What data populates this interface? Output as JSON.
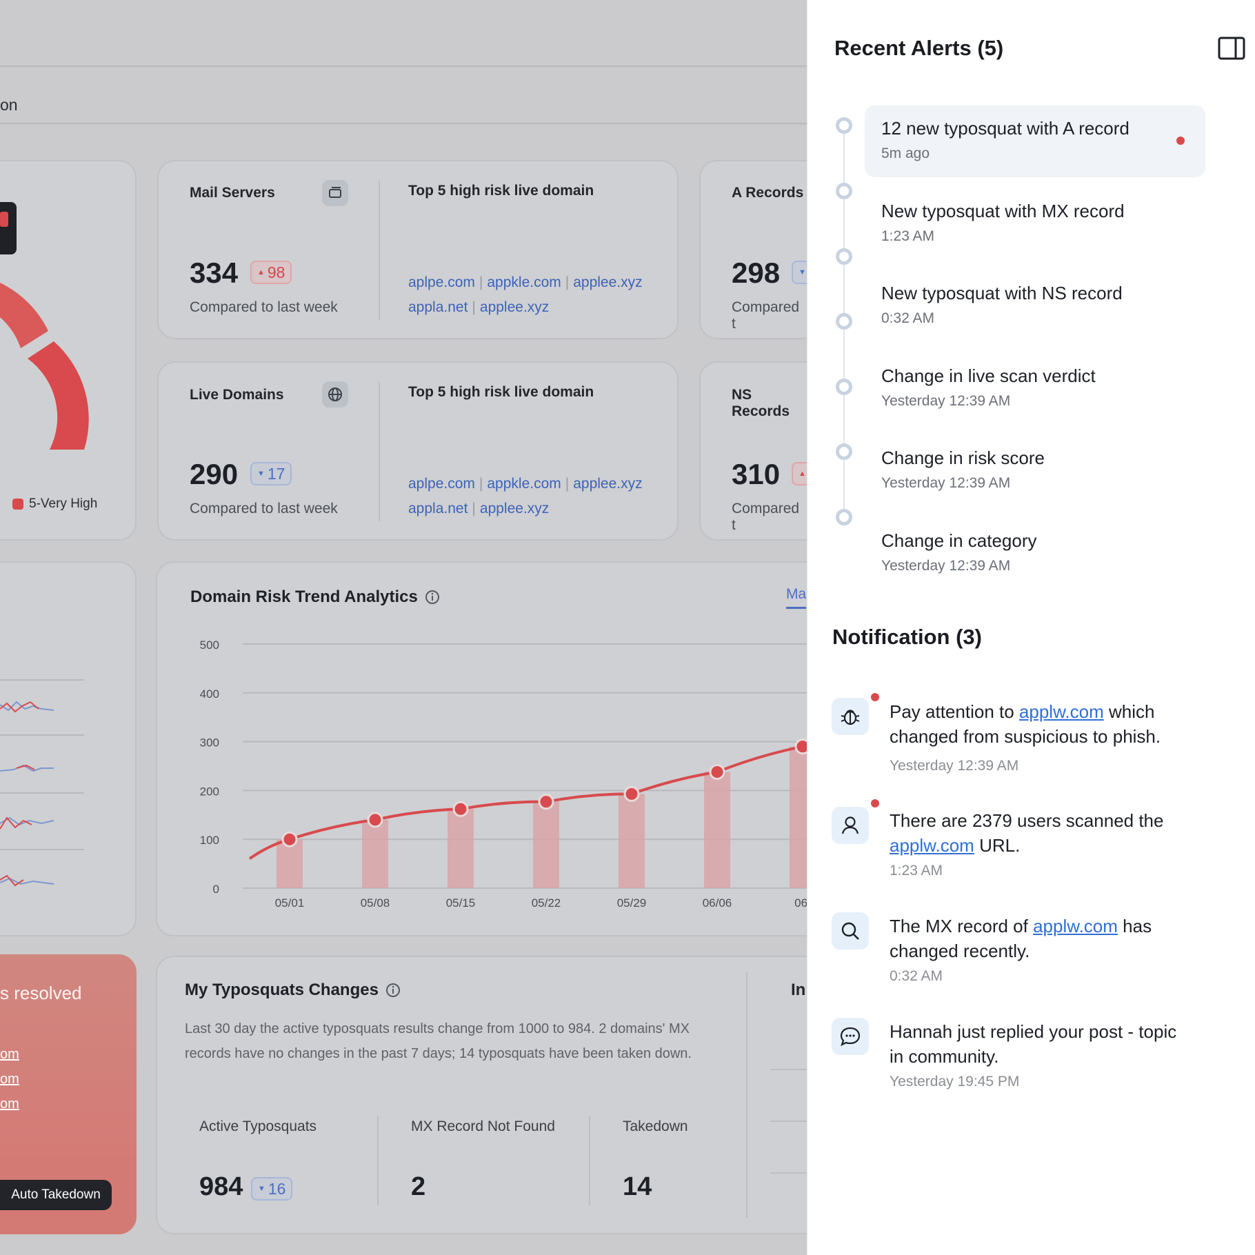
{
  "dashboard": {
    "nav_fragment": "on",
    "legend_very_high": "5-Very High",
    "mail_servers": {
      "title": "Mail Servers",
      "value": "334",
      "change": "98",
      "change_dir": "up",
      "compare": "Compared to last week",
      "top5_title": "Top 5 high risk live domain",
      "domains": [
        "aplpe.com",
        "appkle.com",
        "applee.xyz",
        "appla.net",
        "applee.xyz"
      ]
    },
    "live_domains": {
      "title": "Live Domains",
      "value": "290",
      "change": "17",
      "change_dir": "down",
      "compare": "Compared to last week",
      "top5_title": "Top 5 high risk live domain",
      "domains": [
        "aplpe.com",
        "appkle.com",
        "applee.xyz",
        "appla.net",
        "applee.xyz"
      ]
    },
    "a_records": {
      "title": "A Records",
      "value": "298",
      "compare": "Compared t"
    },
    "ns_records": {
      "title": "NS Records",
      "value": "310",
      "compare": "Compared t"
    },
    "trend": {
      "title": "Domain Risk Trend Analytics",
      "tab_fragment": "Ma"
    },
    "typosquats": {
      "title": "My Typosquats Changes",
      "description": "Last 30 day the active typosquats results change from 1000 to 984. 2 domains' MX records have no changes in the past 7 days; 14 typosquats have been taken down.",
      "active_label": "Active Typosquats",
      "active_value": "984",
      "active_change": "16",
      "mx_label": "MX Record Not Found",
      "mx_value": "2",
      "takedown_label": "Takedown",
      "takedown_value": "14",
      "side_fragment": "In"
    },
    "resolved": {
      "text": "s resolved",
      "links": [
        "om",
        "om",
        "om"
      ],
      "button": "Auto Takedown"
    }
  },
  "chart_data": {
    "type": "line",
    "title": "Domain Risk Trend Analytics",
    "categories": [
      "05/01",
      "05/08",
      "05/15",
      "05/22",
      "05/29",
      "06/06",
      "06/"
    ],
    "series": [
      {
        "values": [
          100,
          140,
          162,
          177,
          193,
          238,
          290
        ]
      }
    ],
    "ylim": [
      0,
      500
    ],
    "yticks": [
      0,
      100,
      200,
      300,
      400,
      500
    ],
    "grid": true,
    "colors": {
      "line": "#d84a4d",
      "bar": "#d9a5a7"
    }
  },
  "alerts": {
    "title": "Recent Alerts (5)",
    "items": [
      {
        "title": "12 new typosquat with A record",
        "time": "5m ago",
        "unread": true
      },
      {
        "title": "New typosquat with MX record",
        "time": "1:23 AM",
        "unread": false
      },
      {
        "title": "New typosquat with NS record",
        "time": "0:32 AM",
        "unread": false
      },
      {
        "title": "Change in live scan verdict",
        "time": "Yesterday 12:39 AM",
        "unread": false
      },
      {
        "title": "Change in risk score",
        "time": "Yesterday 12:39 AM",
        "unread": false
      },
      {
        "title": "Change in category",
        "time": "Yesterday 12:39 AM",
        "unread": false
      }
    ]
  },
  "notifications": {
    "title": "Notification (3)",
    "items": [
      {
        "icon": "bug-icon",
        "pre": "Pay attention to ",
        "link": "applw.com",
        "post": " which changed from suspicious to phish.",
        "time": "Yesterday 12:39 AM",
        "unread": true
      },
      {
        "icon": "user-icon",
        "pre": "There are 2379 users scanned the ",
        "link": "applw.com",
        "post": " URL.",
        "time": "1:23 AM",
        "unread": true
      },
      {
        "icon": "search-icon",
        "pre": "The MX record of ",
        "link": "applw.com",
        "post": " has changed recently.",
        "time": "0:32 AM",
        "unread": false
      },
      {
        "icon": "chat-icon",
        "pre": "Hannah just replied your post - topic in community.",
        "link": "",
        "post": "",
        "time": "Yesterday 19:45 PM",
        "unread": false
      }
    ]
  },
  "colors": {
    "accent_red": "#d84a4d",
    "link_blue": "#2f6fd6",
    "overlay_gray": "#cbcbcd"
  }
}
